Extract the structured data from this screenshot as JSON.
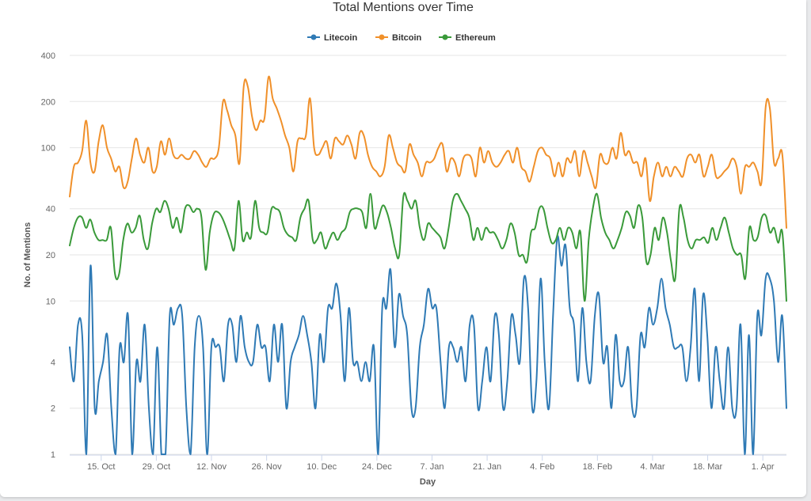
{
  "chart_data": {
    "type": "line",
    "title": "Total Mentions over Time",
    "xlabel": "Day",
    "ylabel": "No. of Mentions",
    "yscale": "log",
    "ylim": [
      1,
      400
    ],
    "yticks": [
      1,
      2,
      4,
      10,
      20,
      40,
      100,
      200,
      400
    ],
    "ytick_labels": [
      "1",
      "2",
      "4",
      "10",
      "20",
      "40",
      "100",
      "200",
      "400"
    ],
    "x_start": "2017-10-07",
    "x_end": "2018-04-07",
    "xticks": [
      {
        "date": "2017-10-15",
        "label": "15. Oct"
      },
      {
        "date": "2017-10-29",
        "label": "29. Oct"
      },
      {
        "date": "2017-11-12",
        "label": "12. Nov"
      },
      {
        "date": "2017-11-26",
        "label": "26. Nov"
      },
      {
        "date": "2017-12-10",
        "label": "10. Dec"
      },
      {
        "date": "2017-12-24",
        "label": "24. Dec"
      },
      {
        "date": "2018-01-07",
        "label": "7. Jan"
      },
      {
        "date": "2018-01-21",
        "label": "21. Jan"
      },
      {
        "date": "2018-02-04",
        "label": "4. Feb"
      },
      {
        "date": "2018-02-18",
        "label": "18. Feb"
      },
      {
        "date": "2018-03-04",
        "label": "4. Mar"
      },
      {
        "date": "2018-03-18",
        "label": "18. Mar"
      },
      {
        "date": "2018-04-01",
        "label": "1. Apr"
      }
    ],
    "legend_position": "top-center",
    "grid": true,
    "series": [
      {
        "name": "Litecoin",
        "color": "#2f7ab5",
        "values": [
          5,
          3,
          7,
          6,
          1,
          17,
          2,
          3,
          4,
          6,
          2,
          1,
          5,
          4,
          8,
          1,
          4,
          3,
          7,
          2,
          1,
          5,
          1,
          1,
          8,
          7,
          9,
          8,
          2,
          1,
          5,
          8,
          5,
          1,
          5,
          5,
          5,
          3,
          7,
          7,
          4,
          8,
          5,
          4,
          4,
          7,
          5,
          5,
          3,
          7,
          4,
          7,
          2,
          4,
          5,
          6,
          8,
          6,
          4,
          2,
          6,
          4,
          9,
          9,
          13,
          8,
          3,
          9,
          4,
          4,
          3,
          4,
          3,
          5,
          1,
          9,
          9,
          16,
          5,
          11,
          8,
          6,
          2,
          2,
          5,
          7,
          12,
          9,
          9,
          4,
          2,
          5,
          5,
          4,
          5,
          3,
          7,
          7,
          2,
          3,
          5,
          3,
          8,
          6,
          2,
          3,
          8,
          6,
          4,
          14,
          9,
          2,
          3,
          14,
          4,
          2,
          8,
          26,
          17,
          23,
          9,
          7,
          3,
          9,
          4,
          3,
          8,
          11,
          4,
          5,
          2,
          6,
          3,
          3,
          5,
          2,
          2,
          6,
          5,
          9,
          7,
          9,
          14,
          9,
          7,
          5,
          5,
          5,
          3,
          5,
          12,
          3,
          11,
          6,
          2,
          5,
          3,
          2,
          5,
          2,
          2,
          7,
          1,
          6,
          1,
          8,
          6,
          14,
          14,
          10,
          4,
          8,
          2
        ]
      },
      {
        "name": "Bitcoin",
        "color": "#f0902a",
        "values": [
          48,
          75,
          80,
          95,
          150,
          80,
          70,
          110,
          140,
          100,
          85,
          70,
          75,
          55,
          60,
          85,
          115,
          90,
          80,
          100,
          70,
          75,
          110,
          90,
          115,
          90,
          85,
          90,
          85,
          85,
          95,
          90,
          80,
          75,
          85,
          85,
          100,
          200,
          175,
          140,
          120,
          80,
          250,
          250,
          160,
          130,
          150,
          155,
          290,
          210,
          180,
          150,
          120,
          100,
          70,
          110,
          115,
          120,
          210,
          100,
          90,
          100,
          110,
          85,
          115,
          110,
          105,
          120,
          105,
          85,
          125,
          120,
          90,
          75,
          70,
          65,
          75,
          120,
          100,
          80,
          75,
          70,
          105,
          90,
          80,
          65,
          80,
          80,
          85,
          100,
          105,
          70,
          85,
          80,
          65,
          85,
          90,
          85,
          65,
          100,
          80,
          95,
          80,
          75,
          80,
          90,
          95,
          80,
          100,
          75,
          70,
          60,
          75,
          95,
          100,
          90,
          85,
          65,
          80,
          65,
          85,
          80,
          95,
          65,
          95,
          80,
          65,
          55,
          90,
          80,
          80,
          100,
          85,
          125,
          90,
          95,
          80,
          80,
          65,
          85,
          45,
          65,
          80,
          65,
          75,
          65,
          75,
          70,
          65,
          85,
          90,
          80,
          90,
          65,
          75,
          90,
          65,
          65,
          70,
          75,
          85,
          75,
          50,
          75,
          75,
          80,
          70,
          60,
          185,
          180,
          80,
          85,
          90,
          30
        ]
      },
      {
        "name": "Ethereum",
        "color": "#3a9a3a",
        "values": [
          23,
          30,
          35,
          35,
          30,
          34,
          28,
          25,
          25,
          25,
          30,
          15,
          15,
          25,
          32,
          28,
          30,
          36,
          25,
          22,
          32,
          40,
          38,
          45,
          40,
          30,
          35,
          28,
          40,
          42,
          38,
          40,
          35,
          16,
          28,
          37,
          38,
          35,
          30,
          25,
          22,
          45,
          25,
          28,
          26,
          45,
          30,
          28,
          28,
          40,
          40,
          38,
          30,
          27,
          26,
          25,
          35,
          40,
          45,
          25,
          25,
          28,
          22,
          25,
          28,
          25,
          28,
          30,
          38,
          40,
          40,
          38,
          30,
          50,
          30,
          35,
          42,
          38,
          30,
          22,
          20,
          48,
          45,
          40,
          45,
          30,
          25,
          32,
          30,
          28,
          26,
          22,
          30,
          45,
          50,
          45,
          40,
          35,
          25,
          30,
          25,
          30,
          28,
          28,
          25,
          22,
          25,
          32,
          28,
          20,
          20,
          18,
          28,
          30,
          40,
          40,
          30,
          24,
          25,
          30,
          25,
          30,
          28,
          22,
          28,
          10,
          25,
          40,
          50,
          35,
          28,
          25,
          22,
          25,
          30,
          38,
          36,
          30,
          42,
          35,
          18,
          20,
          30,
          25,
          35,
          28,
          18,
          14,
          40,
          35,
          25,
          22,
          25,
          25,
          26,
          24,
          30,
          25,
          30,
          35,
          28,
          22,
          20,
          20,
          14,
          30,
          25,
          26,
          35,
          36,
          28,
          30,
          24,
          28,
          10
        ]
      }
    ]
  }
}
